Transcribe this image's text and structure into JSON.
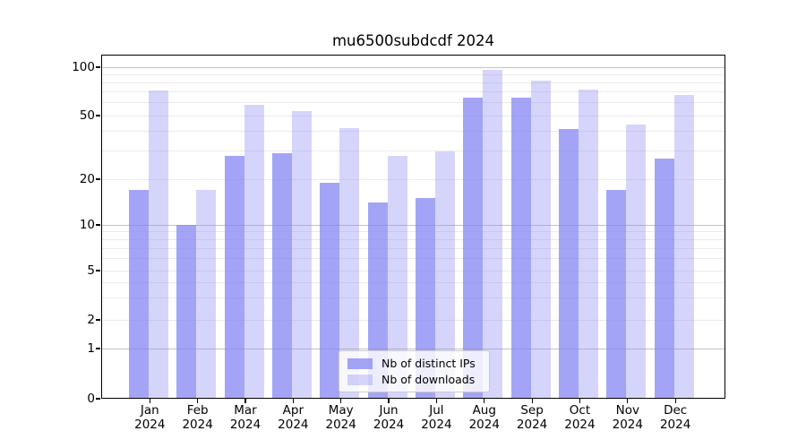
{
  "chart_data": {
    "type": "bar",
    "title": "mu6500subdcdf 2024",
    "categories": [
      "Jan",
      "Feb",
      "Mar",
      "Apr",
      "May",
      "Jun",
      "Jul",
      "Aug",
      "Sep",
      "Oct",
      "Nov",
      "Dec"
    ],
    "x_year_label": "2024",
    "series": [
      {
        "name": "Nb of distinct IPs",
        "color": "rgba(134,134,244,0.75)",
        "values": [
          17,
          10,
          28,
          29,
          19,
          14,
          15,
          65,
          65,
          41,
          17,
          27
        ]
      },
      {
        "name": "Nb of downloads",
        "color": "rgba(134,134,244,0.35)",
        "values": [
          72,
          17,
          58,
          53,
          42,
          28,
          30,
          96,
          83,
          73,
          44,
          67
        ]
      }
    ],
    "y_axis": {
      "scale": "asinh-log",
      "ticks": [
        0,
        1,
        2,
        5,
        10,
        20,
        50,
        100
      ],
      "major_gridlines": [
        1,
        10,
        100
      ],
      "minor_gridlines": [
        2,
        3,
        4,
        5,
        6,
        7,
        8,
        9,
        20,
        30,
        40,
        50,
        60,
        70,
        80,
        90
      ],
      "range": [
        0,
        115
      ]
    },
    "legend": {
      "entries": [
        "Nb of distinct IPs",
        "Nb of downloads"
      ],
      "position": "bottom-center-inside"
    },
    "grid": "horizontal",
    "colors": {
      "bar_base": "#8686f4",
      "grid_major": "#c3c3c3",
      "grid_minor": "#ebebeb"
    }
  }
}
